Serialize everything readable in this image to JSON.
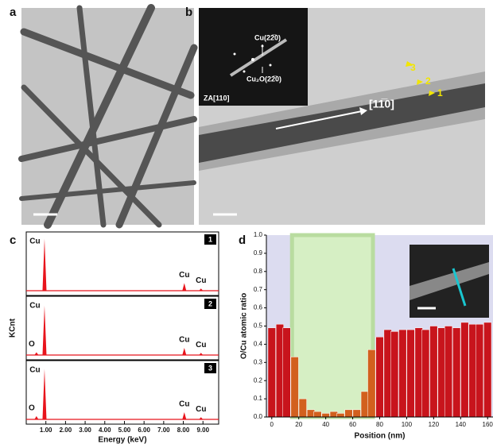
{
  "figure": {
    "panel_labels": [
      "a",
      "b",
      "c",
      "d"
    ],
    "inset_b": {
      "zone_axis": "ZA[110]",
      "spot_cu": "Cu(22̅0)",
      "spot_cu2o": "Cu₂O(22̅0)"
    },
    "direction": "[11̅0]",
    "markers": [
      "1",
      "2",
      "3"
    ]
  },
  "chart_data": [
    {
      "type": "spectrum",
      "xlabel": "Energy (keV)",
      "ylabel": "KCnt",
      "color": "#e8141c",
      "xlim": [
        0,
        9.8
      ],
      "ylim": [
        0,
        1
      ],
      "xticks": [
        {
          "value": 1,
          "label": "1.00"
        },
        {
          "value": 2,
          "label": "2.00"
        },
        {
          "value": 3,
          "label": "3.00"
        },
        {
          "value": 4,
          "label": "4.00"
        },
        {
          "value": 5,
          "label": "5.00"
        },
        {
          "value": 6,
          "label": "6.00"
        },
        {
          "value": 7,
          "label": "7.00"
        },
        {
          "value": 8,
          "label": "8.00"
        },
        {
          "value": 9,
          "label": "9.00"
        }
      ],
      "panels": [
        {
          "tag": "1",
          "peaks": [
            {
              "label": "Cu",
              "energy": 0.93,
              "height": 0.95
            },
            {
              "label": "Cu",
              "energy": 8.05,
              "height": 0.14
            },
            {
              "label": "Cu",
              "energy": 8.9,
              "height": 0.04
            }
          ]
        },
        {
          "tag": "2",
          "peaks": [
            {
              "label": "O",
              "energy": 0.52,
              "height": 0.05
            },
            {
              "label": "Cu",
              "energy": 0.93,
              "height": 0.9
            },
            {
              "label": "Cu",
              "energy": 8.05,
              "height": 0.13
            },
            {
              "label": "Cu",
              "energy": 8.9,
              "height": 0.04
            }
          ]
        },
        {
          "tag": "3",
          "peaks": [
            {
              "label": "O",
              "energy": 0.52,
              "height": 0.06
            },
            {
              "label": "Cu",
              "energy": 0.93,
              "height": 0.92
            },
            {
              "label": "Cu",
              "energy": 8.05,
              "height": 0.13
            },
            {
              "label": "Cu",
              "energy": 8.9,
              "height": 0.04
            }
          ]
        }
      ]
    },
    {
      "type": "bar",
      "xlabel": "Position (nm)",
      "ylabel": "O/Cu atomic ratio",
      "xlim": [
        -4,
        164
      ],
      "ylim": [
        0,
        1
      ],
      "xticks": [
        0,
        20,
        40,
        60,
        80,
        100,
        120,
        140,
        160
      ],
      "yticks": [
        {
          "value": 0,
          "label": "0.0"
        },
        0.1,
        0.2,
        0.3,
        0.4,
        0.5,
        0.6,
        0.7,
        0.8,
        0.9,
        {
          "value": 1,
          "label": "1.0"
        }
      ],
      "background": "#dcdcf0",
      "shaded_region": {
        "xlim": [
          15,
          75
        ],
        "color": "#d6efc4",
        "edge": "#b9dca0"
      },
      "x": [
        0,
        6,
        11,
        17,
        23,
        29,
        34,
        40,
        46,
        51,
        57,
        63,
        69,
        74,
        80,
        86,
        91,
        97,
        103,
        109,
        114,
        120,
        126,
        131,
        137,
        143,
        149,
        154,
        160
      ],
      "values": [
        0.49,
        0.51,
        0.49,
        0.33,
        0.1,
        0.04,
        0.03,
        0.02,
        0.03,
        0.02,
        0.04,
        0.04,
        0.14,
        0.37,
        0.44,
        0.48,
        0.47,
        0.48,
        0.48,
        0.49,
        0.48,
        0.5,
        0.49,
        0.5,
        0.49,
        0.52,
        0.51,
        0.51,
        0.52
      ],
      "colors": [
        "#c8141c",
        "#c8141c",
        "#c8141c",
        "#d2601e",
        "#d2601e",
        "#d2601e",
        "#d2601e",
        "#d2601e",
        "#d2601e",
        "#d2601e",
        "#d2601e",
        "#d2601e",
        "#d2601e",
        "#d2601e",
        "#c8141c",
        "#c8141c",
        "#c8141c",
        "#c8141c",
        "#c8141c",
        "#c8141c",
        "#c8141c",
        "#c8141c",
        "#c8141c",
        "#c8141c",
        "#c8141c",
        "#c8141c",
        "#c8141c",
        "#c8141c",
        "#c8141c"
      ]
    }
  ]
}
